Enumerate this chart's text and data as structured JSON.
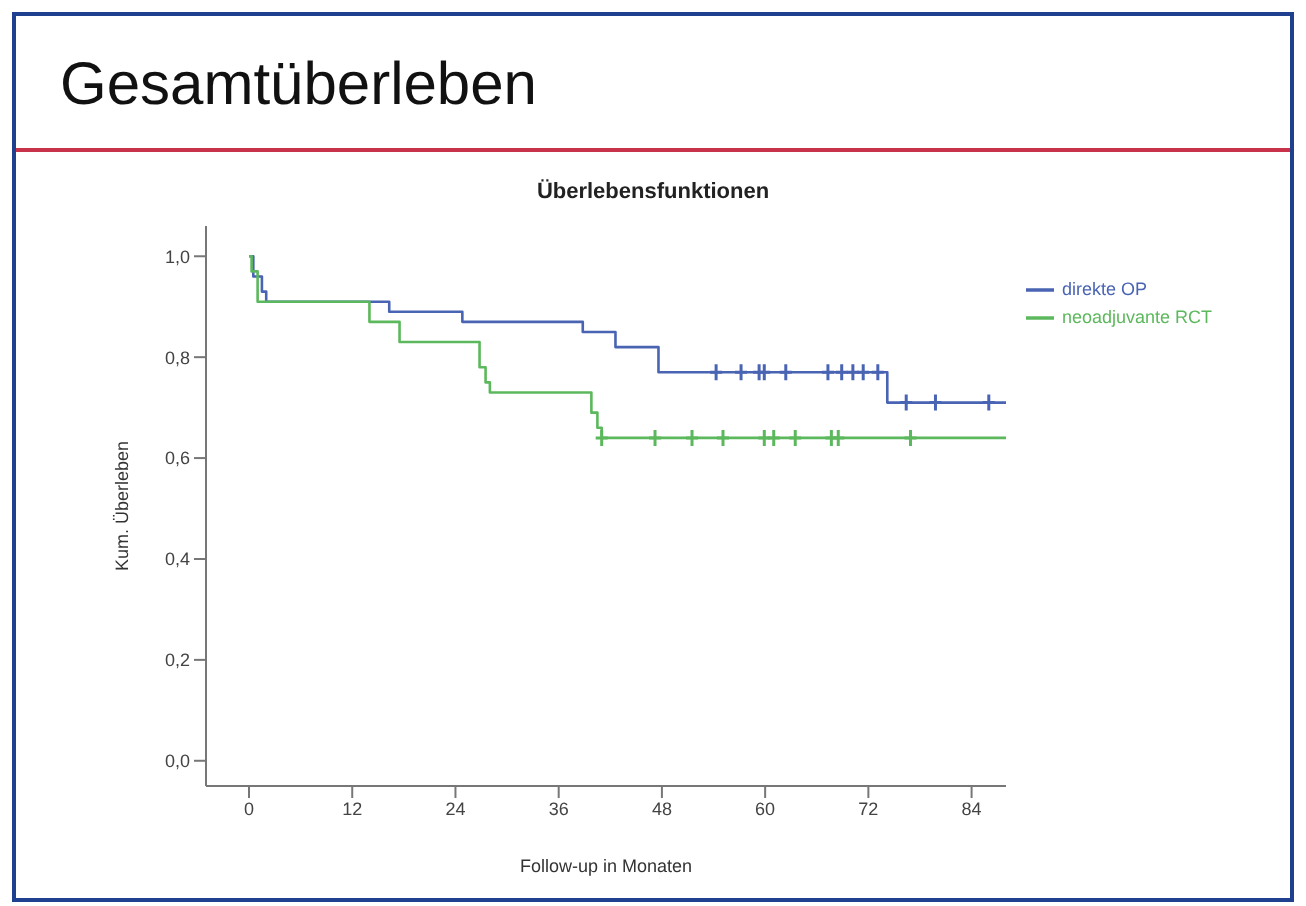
{
  "chart_data": {
    "type": "step",
    "title": "Gesamtüberleben",
    "subtitle": "Überlebensfunktionen",
    "xlabel": "Follow-up in Monaten",
    "ylabel": "Kum. Überleben",
    "xlim": [
      -5,
      88
    ],
    "xticks": [
      0,
      12,
      24,
      36,
      48,
      60,
      72,
      84
    ],
    "ylim": [
      -0.05,
      1.06
    ],
    "yticks": [
      {
        "value": 0,
        "label": "0,0"
      },
      {
        "value": 0.2,
        "label": "0,2"
      },
      {
        "value": 0.4,
        "label": "0,4"
      },
      {
        "value": 0.6,
        "label": "0,6"
      },
      {
        "value": 0.8,
        "label": "0,8"
      },
      {
        "value": 1,
        "label": "1,0"
      }
    ],
    "grid": false,
    "legend": "top right",
    "series": [
      {
        "name": "direkte OP",
        "marker": "none",
        "color": "#4a64b4",
        "x": [
          0,
          0.5,
          1.5,
          2,
          16.3,
          24.8,
          38.8,
          42.6,
          47.6,
          74.2,
          88
        ],
        "values": [
          1,
          0.96,
          0.93,
          0.91,
          0.89,
          0.87,
          0.85,
          0.82,
          0.77,
          0.71,
          0.71
        ]
      },
      {
        "name": "neoadjuvante RCT",
        "marker": "none",
        "color": "#5cb85c",
        "x": [
          0,
          0.3,
          1,
          14,
          17.5,
          26.8,
          27.5,
          28,
          39.8,
          40.5,
          41,
          88
        ],
        "values": [
          1,
          0.97,
          0.91,
          0.87,
          0.83,
          0.78,
          0.75,
          0.73,
          0.69,
          0.66,
          0.64,
          0.64
        ]
      },
      {
        "type": "scatter",
        "marker": "cross",
        "color": "#4a64b4",
        "x": [
          54.3,
          57.2,
          59.3,
          59.9,
          62.4,
          67.3,
          68.9,
          70.2,
          71.4,
          73.1,
          76.4,
          79.8,
          86
        ],
        "values": [
          0.77,
          0.77,
          0.77,
          0.77,
          0.77,
          0.77,
          0.77,
          0.77,
          0.77,
          0.77,
          0.71,
          0.71,
          0.71
        ]
      },
      {
        "type": "scatter",
        "marker": "cross",
        "color": "#5cb85c",
        "x": [
          41,
          47.2,
          51.5,
          55.1,
          59.9,
          61,
          63.5,
          67.7,
          68.5,
          76.9
        ],
        "values": [
          0.64,
          0.64,
          0.64,
          0.64,
          0.64,
          0.64,
          0.64,
          0.64,
          0.64,
          0.64
        ]
      }
    ]
  }
}
